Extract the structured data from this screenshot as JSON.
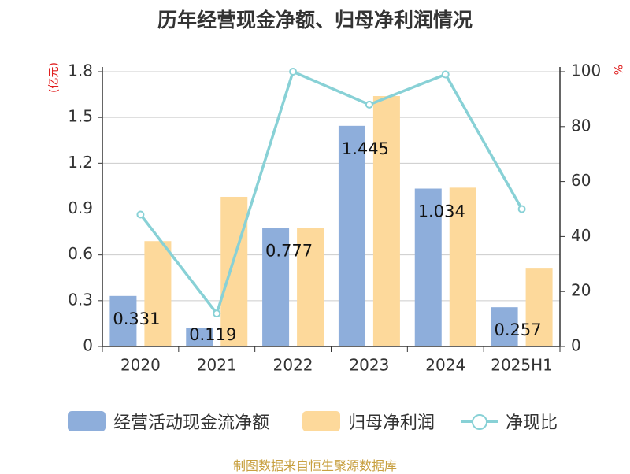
{
  "chart_data": {
    "type": "bar",
    "title": "历年经营现金净额、归母净利润情况",
    "unit_left": "(亿元)",
    "unit_right": "%",
    "categories": [
      "2020",
      "2021",
      "2022",
      "2023",
      "2024",
      "2025H1"
    ],
    "series": [
      {
        "name": "经营活动现金流净额",
        "type": "bar",
        "axis": "left",
        "color": "#8eaedb",
        "values": [
          0.331,
          0.119,
          0.777,
          1.445,
          1.034,
          0.257
        ]
      },
      {
        "name": "归母净利润",
        "type": "bar",
        "axis": "left",
        "color": "#fdd99b",
        "values": [
          0.69,
          0.98,
          0.777,
          1.64,
          1.04,
          0.51
        ]
      },
      {
        "name": "净现比",
        "type": "line",
        "axis": "right",
        "color": "#88d1d6",
        "values": [
          48,
          12,
          100,
          88,
          99,
          50
        ]
      }
    ],
    "data_labels": [
      "0.331",
      "0.119",
      "0.777",
      "1.445",
      "1.034",
      "0.257"
    ],
    "y_left": {
      "min": 0,
      "max": 1.8,
      "ticks": [
        "0",
        "0.3",
        "0.6",
        "0.9",
        "1.2",
        "1.5",
        "1.8"
      ]
    },
    "y_right": {
      "min": 0,
      "max": 100,
      "ticks": [
        "0",
        "20",
        "40",
        "60",
        "80",
        "100"
      ]
    },
    "grid": true,
    "legend_position": "bottom"
  },
  "source": "制图数据来自恒生聚源数据库"
}
